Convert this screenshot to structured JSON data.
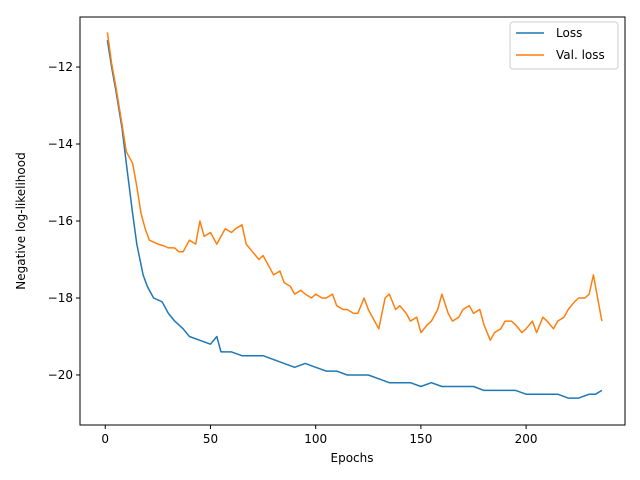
{
  "chart_data": {
    "type": "line",
    "title": "",
    "xlabel": "Epochs",
    "ylabel": "Negative log-likelihood",
    "xlim": [
      -12,
      247
    ],
    "ylim": [
      -21.3,
      -10.7
    ],
    "xticks": [
      0,
      50,
      100,
      150,
      200
    ],
    "yticks": [
      -20,
      -18,
      -16,
      -14,
      -12
    ],
    "ytick_labels": [
      "−20",
      "−18",
      "−16",
      "−14",
      "−12"
    ],
    "grid": false,
    "legend": "top-right",
    "series": [
      {
        "name": "Loss",
        "color": "#1f77b4",
        "x": [
          1,
          3,
          5,
          8,
          10,
          13,
          15,
          18,
          20,
          23,
          27,
          30,
          33,
          37,
          40,
          45,
          50,
          53,
          55,
          60,
          65,
          70,
          75,
          80,
          85,
          90,
          95,
          100,
          105,
          110,
          115,
          120,
          125,
          130,
          135,
          140,
          145,
          150,
          155,
          160,
          165,
          170,
          175,
          180,
          185,
          190,
          195,
          200,
          205,
          210,
          215,
          220,
          225,
          230,
          233,
          236
        ],
        "values": [
          -11.3,
          -12.0,
          -12.6,
          -13.6,
          -14.5,
          -15.8,
          -16.6,
          -17.4,
          -17.7,
          -18.0,
          -18.1,
          -18.4,
          -18.6,
          -18.8,
          -19.0,
          -19.1,
          -19.2,
          -19.0,
          -19.4,
          -19.4,
          -19.5,
          -19.5,
          -19.5,
          -19.6,
          -19.7,
          -19.8,
          -19.7,
          -19.8,
          -19.9,
          -19.9,
          -20.0,
          -20.0,
          -20.0,
          -20.1,
          -20.2,
          -20.2,
          -20.2,
          -20.3,
          -20.2,
          -20.3,
          -20.3,
          -20.3,
          -20.3,
          -20.4,
          -20.4,
          -20.4,
          -20.4,
          -20.5,
          -20.5,
          -20.5,
          -20.5,
          -20.6,
          -20.6,
          -20.5,
          -20.5,
          -20.4
        ]
      },
      {
        "name": "Val. loss",
        "color": "#ff7f0e",
        "x": [
          1,
          3,
          5,
          8,
          10,
          13,
          15,
          17,
          19,
          21,
          25,
          28,
          30,
          33,
          35,
          37,
          40,
          43,
          45,
          47,
          50,
          53,
          55,
          57,
          60,
          62,
          65,
          67,
          70,
          73,
          75,
          78,
          80,
          83,
          85,
          88,
          90,
          93,
          95,
          98,
          100,
          103,
          105,
          108,
          110,
          113,
          115,
          118,
          120,
          123,
          125,
          128,
          130,
          133,
          135,
          138,
          140,
          143,
          145,
          148,
          150,
          153,
          155,
          158,
          160,
          163,
          165,
          168,
          170,
          173,
          175,
          178,
          180,
          183,
          185,
          188,
          190,
          193,
          195,
          198,
          200,
          203,
          205,
          208,
          210,
          213,
          215,
          218,
          220,
          223,
          225,
          228,
          230,
          232,
          234,
          236
        ],
        "values": [
          -11.1,
          -11.9,
          -12.5,
          -13.5,
          -14.2,
          -14.5,
          -15.1,
          -15.8,
          -16.2,
          -16.5,
          -16.6,
          -16.65,
          -16.7,
          -16.7,
          -16.8,
          -16.8,
          -16.5,
          -16.6,
          -16.0,
          -16.4,
          -16.3,
          -16.6,
          -16.4,
          -16.2,
          -16.3,
          -16.2,
          -16.1,
          -16.6,
          -16.8,
          -17.0,
          -16.9,
          -17.2,
          -17.4,
          -17.3,
          -17.6,
          -17.7,
          -17.9,
          -17.8,
          -17.9,
          -18.0,
          -17.9,
          -18.0,
          -18.0,
          -17.9,
          -18.2,
          -18.3,
          -18.3,
          -18.4,
          -18.4,
          -18.0,
          -18.3,
          -18.6,
          -18.8,
          -18.0,
          -17.9,
          -18.3,
          -18.2,
          -18.4,
          -18.6,
          -18.5,
          -18.9,
          -18.7,
          -18.6,
          -18.3,
          -17.9,
          -18.4,
          -18.6,
          -18.5,
          -18.3,
          -18.2,
          -18.4,
          -18.3,
          -18.7,
          -19.1,
          -18.9,
          -18.8,
          -18.6,
          -18.6,
          -18.7,
          -18.9,
          -18.8,
          -18.6,
          -18.9,
          -18.5,
          -18.6,
          -18.8,
          -18.6,
          -18.5,
          -18.3,
          -18.1,
          -18.0,
          -18.0,
          -17.9,
          -17.4,
          -18.0,
          -18.6
        ]
      }
    ]
  }
}
